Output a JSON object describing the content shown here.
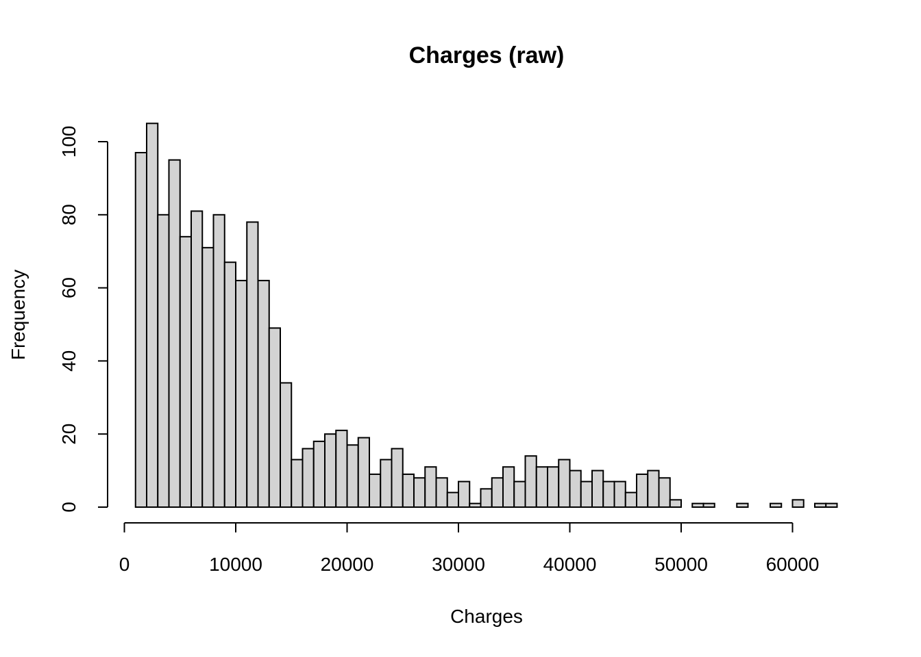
{
  "chart_data": {
    "type": "bar",
    "title": "Charges (raw)",
    "xlabel": "Charges",
    "ylabel": "Frequency",
    "bin_width": 1000,
    "bin_start": 1000,
    "values": [
      97,
      105,
      80,
      95,
      74,
      81,
      71,
      80,
      67,
      62,
      78,
      62,
      49,
      34,
      13,
      16,
      18,
      20,
      21,
      17,
      19,
      9,
      13,
      16,
      9,
      8,
      11,
      8,
      4,
      7,
      1,
      5,
      8,
      11,
      7,
      14,
      11,
      11,
      13,
      10,
      7,
      10,
      7,
      7,
      4,
      9,
      10,
      8,
      2,
      0,
      1,
      1,
      0,
      0,
      1,
      0,
      0,
      1,
      0,
      2,
      0,
      1,
      1
    ],
    "xlim": [
      0,
      64000
    ],
    "ylim": [
      0,
      105
    ],
    "x_ticks": [
      "0",
      "10000",
      "20000",
      "30000",
      "40000",
      "50000",
      "60000"
    ],
    "y_ticks": [
      "0",
      "20",
      "40",
      "60",
      "80",
      "100"
    ],
    "grid": false,
    "legend": "none"
  }
}
